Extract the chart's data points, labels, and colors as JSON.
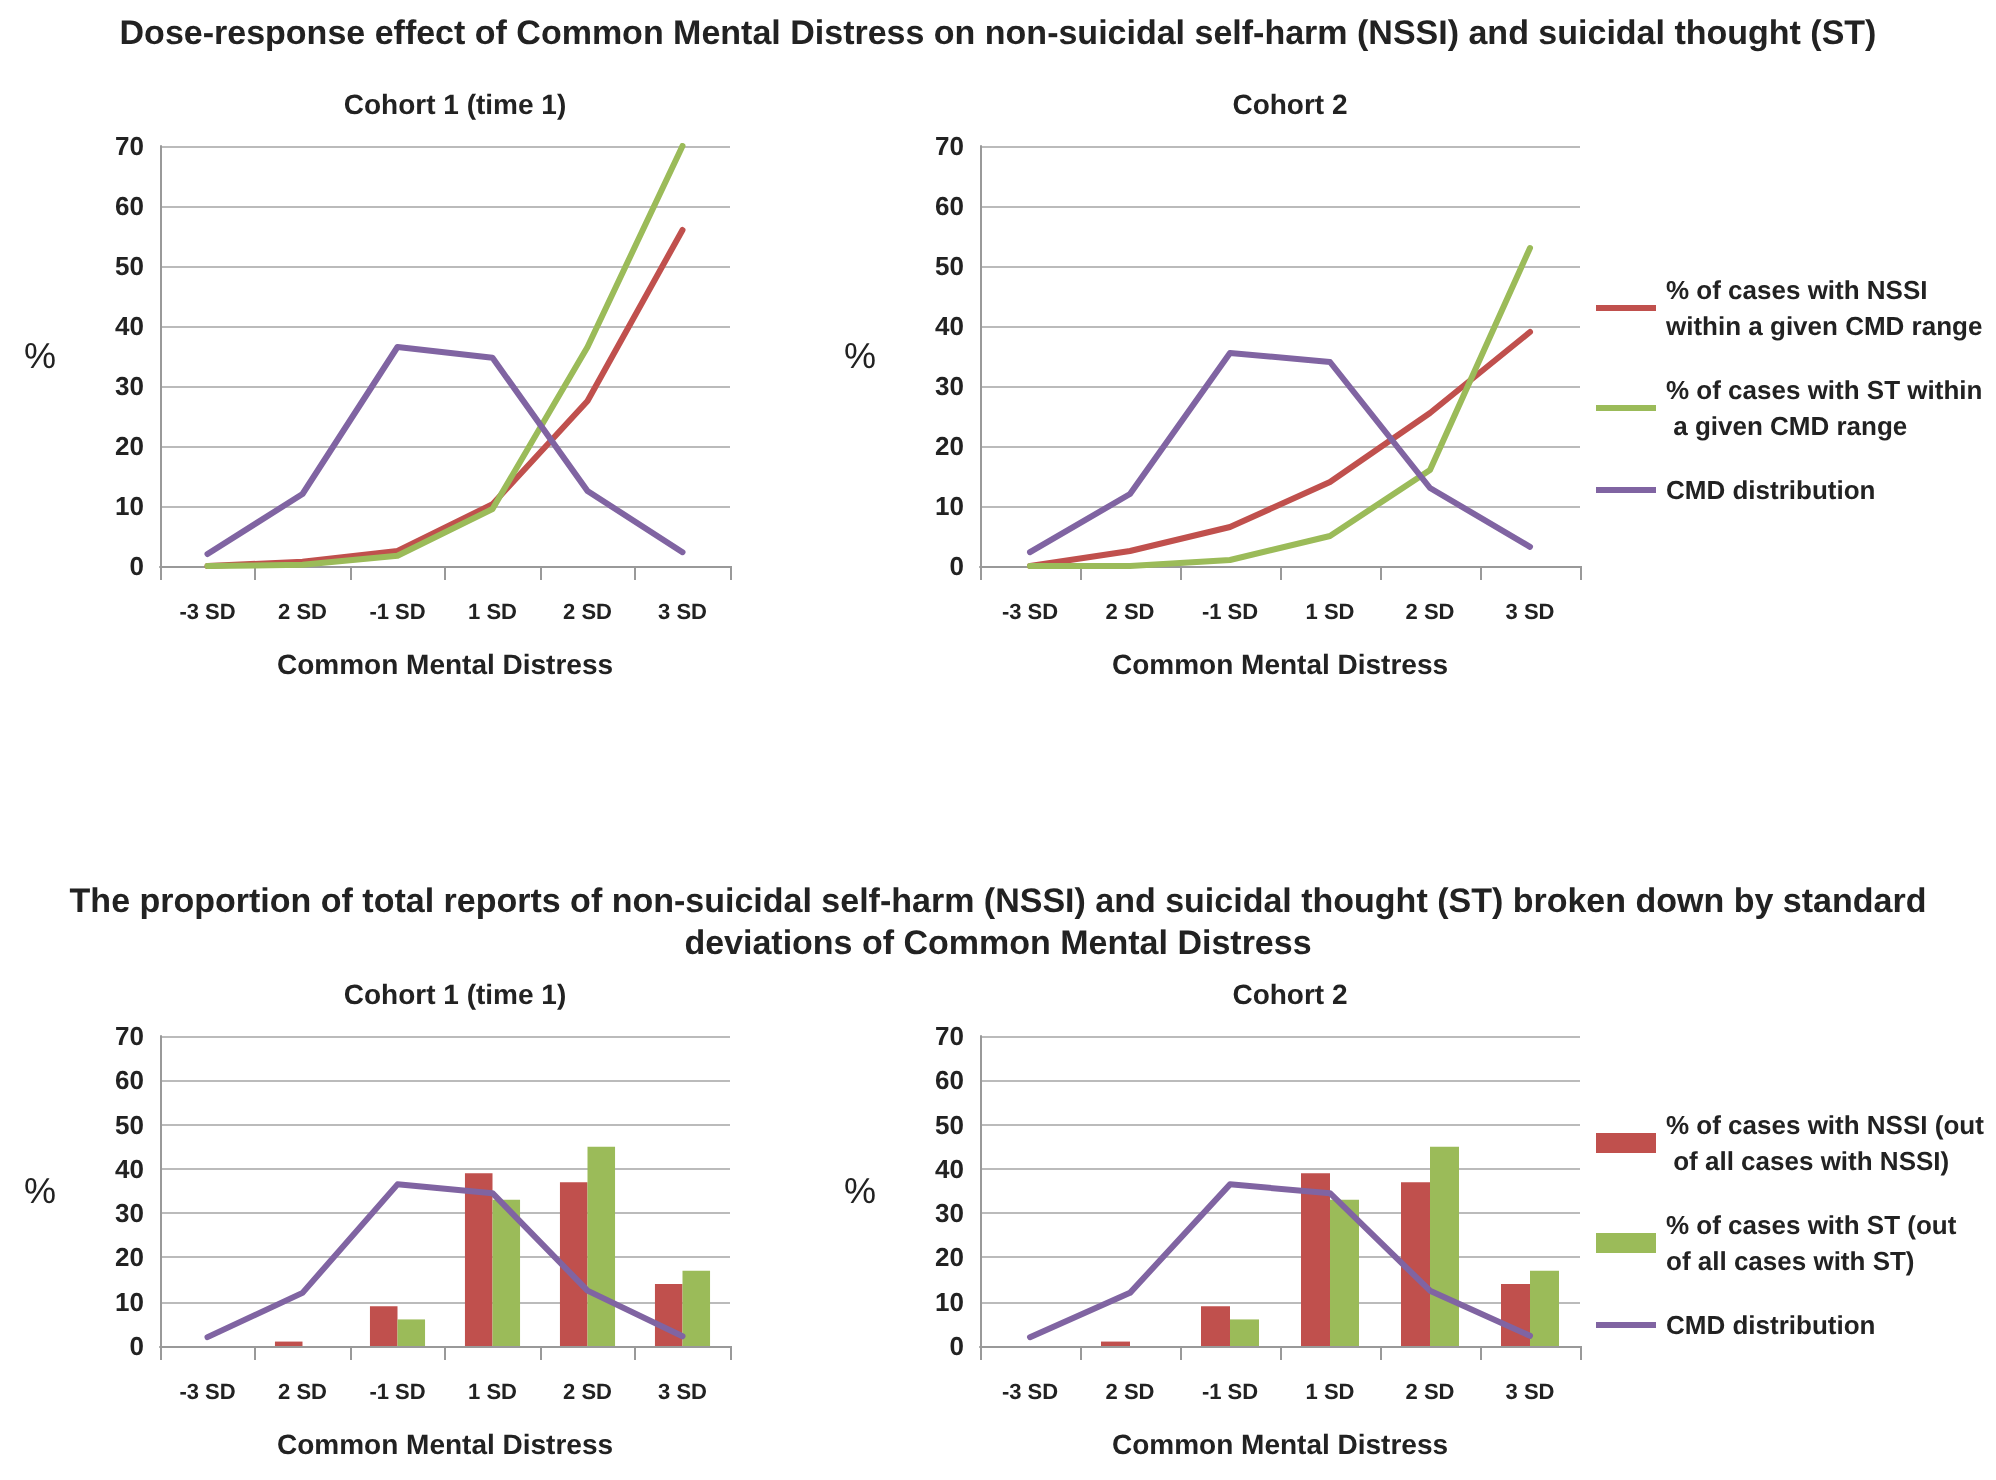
{
  "chart_data": [
    {
      "type": "line",
      "title": "Dose-response effect of Common Mental Distress on non-suicidal self-harm (NSSI) and suicidal thought (ST)",
      "subtitle": "Cohort 1 (time 1)",
      "xlabel": "Common Mental Distress",
      "ylabel": "%",
      "categories": [
        "-3 SD",
        "2 SD",
        "-1 SD",
        "1 SD",
        "2 SD",
        "3 SD"
      ],
      "series": [
        {
          "color": "#c0504d",
          "values": [
            0,
            0.7,
            2.5,
            10.3,
            27.5,
            56
          ]
        },
        {
          "color": "#9bbb59",
          "values": [
            0,
            0.2,
            1.7,
            9.5,
            36.5,
            70
          ]
        },
        {
          "color": "#8064a2",
          "values": [
            2,
            12,
            36.5,
            34.7,
            12.5,
            2.3
          ]
        }
      ],
      "ylim": [
        0,
        70
      ],
      "yticks": [
        0,
        10,
        20,
        30,
        40,
        50,
        60,
        70
      ],
      "grid": "y",
      "legend": false,
      "marker": "none",
      "line_style": "solid"
    },
    {
      "type": "line",
      "subtitle": "Cohort 2",
      "xlabel": "Common Mental Distress",
      "ylabel": "%",
      "categories": [
        "-3 SD",
        "2 SD",
        "-1 SD",
        "1 SD",
        "2 SD",
        "3 SD"
      ],
      "series": [
        {
          "name": "% of cases with NSSI within a given CMD range",
          "color": "#c0504d",
          "values": [
            0,
            2.5,
            6.5,
            14,
            25.5,
            39
          ]
        },
        {
          "name": "% of cases with ST within a given CMD range",
          "color": "#9bbb59",
          "values": [
            0,
            0,
            1,
            5,
            16,
            53
          ]
        },
        {
          "name": "CMD distribution",
          "color": "#8064a2",
          "values": [
            2.3,
            12,
            35.5,
            34,
            13,
            3.2
          ]
        }
      ],
      "ylim": [
        0,
        70
      ],
      "yticks": [
        0,
        10,
        20,
        30,
        40,
        50,
        60,
        70
      ],
      "grid": "y",
      "legend": "right",
      "marker": "none",
      "line_style": "solid"
    },
    {
      "type": "bar",
      "title": "The proportion of total reports of non-suicidal self-harm (NSSI) and suicidal thought (ST) broken down by standard deviations of Common Mental Distress",
      "subtitle": "Cohort 1 (time 1)",
      "xlabel": "Common Mental Distress",
      "ylabel": "%",
      "categories": [
        "-3 SD",
        "2 SD",
        "-1 SD",
        "1 SD",
        "2 SD",
        "3 SD"
      ],
      "series": [
        {
          "color": "#c0504d",
          "values": [
            0,
            1,
            9,
            39,
            37,
            14
          ]
        },
        {
          "color": "#9bbb59",
          "values": [
            0,
            0,
            6,
            33,
            45,
            17
          ]
        },
        {
          "type": "line",
          "color": "#8064a2",
          "values": [
            2,
            12,
            36.5,
            34.5,
            12.5,
            2.2
          ]
        }
      ],
      "ylim": [
        0,
        70
      ],
      "yticks": [
        0,
        10,
        20,
        30,
        40,
        50,
        60,
        70
      ],
      "grid": "y",
      "legend": false,
      "marker": "none",
      "line_style": "solid"
    },
    {
      "type": "bar",
      "subtitle": "Cohort 2",
      "xlabel": "Common Mental Distress",
      "ylabel": "%",
      "categories": [
        "-3 SD",
        "2 SD",
        "-1 SD",
        "1 SD",
        "2 SD",
        "3 SD"
      ],
      "series": [
        {
          "name": "% of cases with NSSI (out of all cases with NSSI)",
          "color": "#c0504d",
          "values": [
            0,
            1,
            9,
            39,
            37,
            14
          ]
        },
        {
          "name": "% of cases with ST (out of all cases with ST)",
          "color": "#9bbb59",
          "values": [
            0,
            0,
            6,
            33,
            45,
            17
          ]
        },
        {
          "type": "line",
          "name": "CMD distribution",
          "color": "#8064a2",
          "values": [
            2,
            12,
            36.5,
            34.5,
            12.5,
            2.3
          ]
        }
      ],
      "ylim": [
        0,
        70
      ],
      "yticks": [
        0,
        10,
        20,
        30,
        40,
        50,
        60,
        70
      ],
      "grid": "y",
      "legend": "right",
      "marker": "none",
      "line_style": "solid"
    }
  ]
}
